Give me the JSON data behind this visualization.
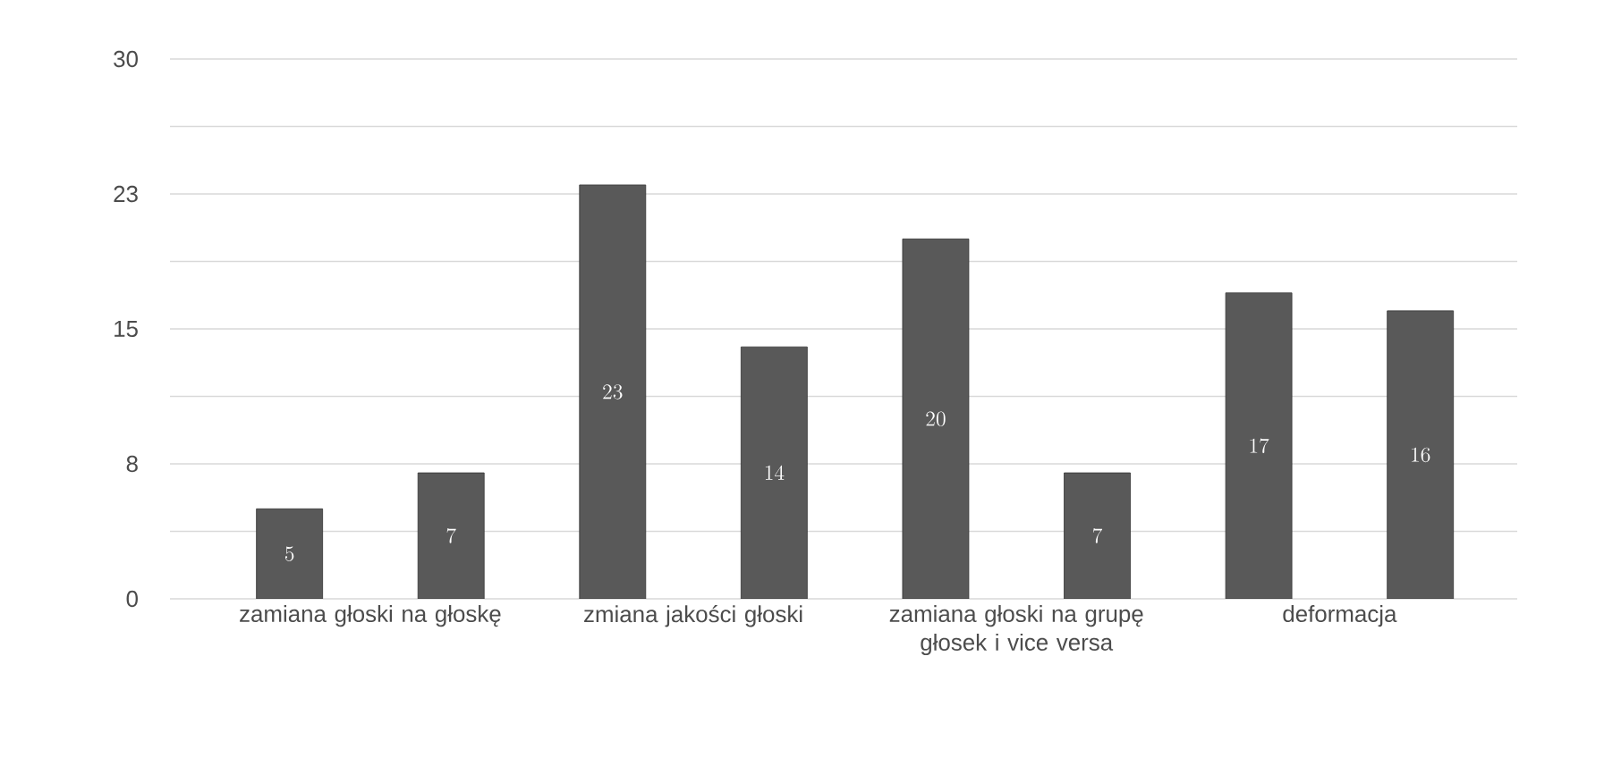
{
  "chart_data": {
    "type": "bar",
    "categories": [
      "zamiana  głoski na głoskę",
      "zmiana jakości głoski",
      "zamiana głoski na grupę głosek i vice versa",
      "deformacja"
    ],
    "series": [
      {
        "color": "#595959",
        "values": [
          5,
          23,
          20,
          17
        ]
      },
      {
        "color": "#595959",
        "values": [
          7,
          14,
          7,
          16
        ]
      }
    ],
    "ylim": [
      0,
      30
    ],
    "yticks": [
      0,
      {
        "value": 3.75,
        "label": null
      },
      {
        "value": 7.5,
        "label": "8"
      },
      {
        "value": 11.25,
        "label": null
      },
      15,
      {
        "value": 18.75,
        "label": null
      },
      {
        "value": 22.5,
        "label": "23"
      },
      {
        "value": 26.25,
        "label": null
      },
      30
    ],
    "grid": "y",
    "data_labels": true
  }
}
